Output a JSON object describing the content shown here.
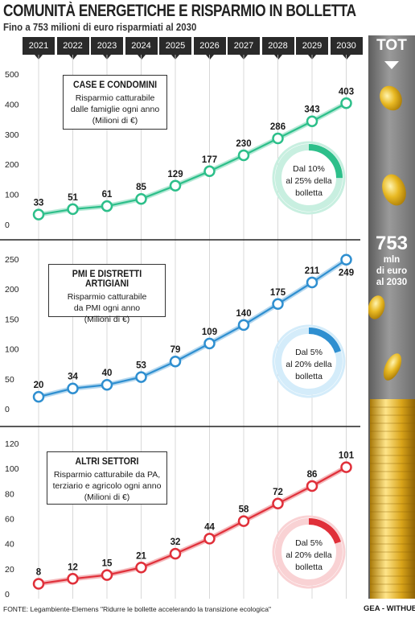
{
  "header": {
    "title": "COMUNITÀ ENERGETICHE E RISPARMIO IN BOLLETTA",
    "subtitle": "Fino a 753 milioni di euro risparmiati al 2030"
  },
  "side_panel": {
    "tot_label": "TOT",
    "total_value": "753",
    "total_lines": [
      "mln",
      "di euro",
      "al 2030"
    ]
  },
  "footer": {
    "source": "FONTE: Legambiente-Elemens \"Ridurre le bollette accelerando la transizione ecologica\"",
    "credit": "GEA - WITHUB"
  },
  "colors": {
    "green": "#2dbf8a",
    "green_light": "#c8efe0",
    "blue": "#2f8fd0",
    "blue_light": "#d4ecfa",
    "red": "#e0303a",
    "red_light": "#f9d2d4"
  },
  "chart_data": [
    {
      "type": "line",
      "title": "CASE E CONDOMINI",
      "description_lines": [
        "Risparmio catturabile",
        "dalle famiglie ogni anno",
        "(Milioni di €)"
      ],
      "x": [
        "2021",
        "2022",
        "2023",
        "2024",
        "2025",
        "2026",
        "2027",
        "2028",
        "2029",
        "2030"
      ],
      "values": [
        33,
        51,
        61,
        85,
        129,
        177,
        230,
        286,
        343,
        403
      ],
      "ylim": [
        0,
        500
      ],
      "yticks": [
        0,
        100,
        200,
        300,
        400,
        500
      ],
      "color": "green",
      "ring": {
        "pct_from": 10,
        "pct_to": 25,
        "lines": [
          "Dal 10%",
          "al 25% della",
          "bolletta"
        ]
      }
    },
    {
      "type": "line",
      "title": "PMI E DISTRETTI ARTIGIANI",
      "description_lines": [
        "Risparmio catturabile",
        "da PMI ogni anno",
        "(Milioni di €)"
      ],
      "x": [
        "2021",
        "2022",
        "2023",
        "2024",
        "2025",
        "2026",
        "2027",
        "2028",
        "2029",
        "2030"
      ],
      "values": [
        20,
        34,
        40,
        53,
        79,
        109,
        140,
        175,
        211,
        249
      ],
      "ylim": [
        0,
        250
      ],
      "yticks": [
        0,
        50,
        100,
        150,
        200,
        250
      ],
      "color": "blue",
      "ring": {
        "pct_from": 5,
        "pct_to": 20,
        "lines": [
          "Dal 5%",
          "al 20% della",
          "bolletta"
        ]
      }
    },
    {
      "type": "line",
      "title": "ALTRI SETTORI",
      "description_lines": [
        "Risparmio catturabile da PA,",
        "terziario e agricolo ogni anno",
        "(Milioni di €)"
      ],
      "x": [
        "2021",
        "2022",
        "2023",
        "2024",
        "2025",
        "2026",
        "2027",
        "2028",
        "2029",
        "2030"
      ],
      "values": [
        8,
        12,
        15,
        21,
        32,
        44,
        58,
        72,
        86,
        101
      ],
      "ylim": [
        0,
        120
      ],
      "yticks": [
        0,
        20,
        40,
        60,
        80,
        100,
        120
      ],
      "color": "red",
      "ring": {
        "pct_from": 5,
        "pct_to": 20,
        "lines": [
          "Dal 5%",
          "al 20% della",
          "bolletta"
        ]
      }
    }
  ]
}
